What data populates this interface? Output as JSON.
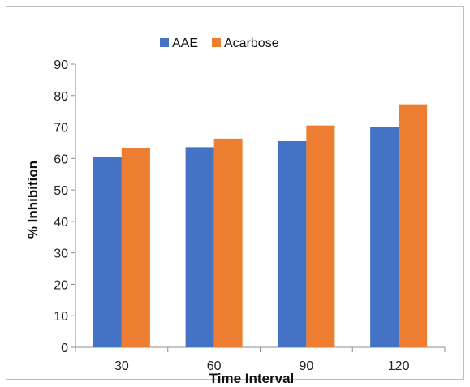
{
  "chart_data": {
    "type": "bar",
    "title": "",
    "xlabel": "Time Interval",
    "ylabel": "% Inhibition",
    "categories": [
      "30",
      "60",
      "90",
      "120"
    ],
    "series": [
      {
        "name": "AAE",
        "color": "#4472C4",
        "values": [
          60.5,
          63.6,
          65.5,
          70.0
        ]
      },
      {
        "name": "Acarbose",
        "color": "#ED7D31",
        "values": [
          63.2,
          66.3,
          70.5,
          77.2
        ]
      }
    ],
    "ylim": [
      0,
      90
    ],
    "yticks": [
      "0",
      "10",
      "20",
      "30",
      "40",
      "50",
      "60",
      "70",
      "80",
      "90"
    ],
    "grid": false,
    "legend_position": "top"
  }
}
